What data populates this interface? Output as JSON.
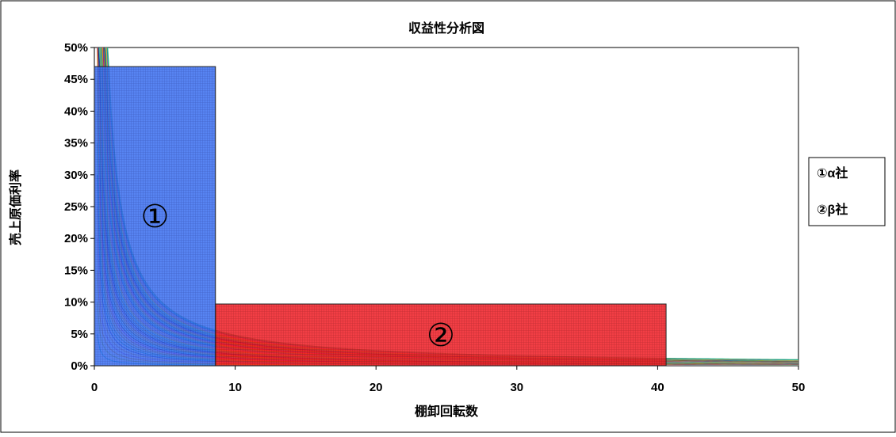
{
  "chart_data": {
    "type": "line",
    "title": "収益性分析図",
    "xlabel": "棚卸回転数",
    "ylabel": "売上原価利率",
    "xlim": [
      0,
      50
    ],
    "ylim": [
      0,
      0.5
    ],
    "x_ticks": [
      {
        "value": 0,
        "label": "0"
      },
      {
        "value": 10,
        "label": "10"
      },
      {
        "value": 20,
        "label": "20"
      },
      {
        "value": 30,
        "label": "30"
      },
      {
        "value": 40,
        "label": "40"
      },
      {
        "value": 50,
        "label": "50"
      }
    ],
    "y_ticks": [
      {
        "value": 0.0,
        "label": "0%"
      },
      {
        "value": 0.05,
        "label": "5%"
      },
      {
        "value": 0.1,
        "label": "10%"
      },
      {
        "value": 0.15,
        "label": "15%"
      },
      {
        "value": 0.2,
        "label": "20%"
      },
      {
        "value": 0.25,
        "label": "25%"
      },
      {
        "value": 0.3,
        "label": "30%"
      },
      {
        "value": 0.35,
        "label": "35%"
      },
      {
        "value": 0.4,
        "label": "40%"
      },
      {
        "value": 0.45,
        "label": "45%"
      },
      {
        "value": 0.5,
        "label": "50%"
      }
    ],
    "grid": false,
    "curve_family": {
      "description_free": true,
      "products": [
        0.5,
        1.0,
        1.5,
        2.0,
        2.5,
        3.0,
        3.5,
        4.0,
        4.5,
        5.0,
        5.5,
        6.0,
        6.5,
        7.0,
        7.5,
        8.0,
        8.5,
        9.0,
        9.5,
        10.0,
        10.5,
        11.0,
        11.5,
        12.0,
        12.5,
        13.0,
        13.5,
        14.0,
        14.5,
        15.0,
        15.5,
        16.0,
        16.5,
        17.0,
        17.5,
        18.0,
        18.5,
        19.0,
        19.5,
        20.0,
        20.5,
        21.0,
        21.5,
        22.0,
        22.5,
        23.0,
        23.5,
        24.0
      ],
      "colors": [
        "#00c8d8",
        "#b8d800",
        "#ff8c00",
        "#c060e0",
        "#f0a060",
        "#2040c0",
        "#00b8b8",
        "#30b070",
        "#d0b000",
        "#ff6020",
        "#e020c0",
        "#1a237e",
        "#20c0e0",
        "#2e7d32",
        "#e0b000",
        "#e06000",
        "#8030c0",
        "#101060",
        "#20a0c0",
        "#70a020"
      ]
    },
    "series": [
      {
        "name": "①",
        "x_range": [
          0,
          8.6
        ],
        "y_range": [
          0,
          0.47
        ],
        "color": "#2a5fe0"
      },
      {
        "name": "②",
        "x_range": [
          8.6,
          40.6
        ],
        "y_range": [
          0,
          0.097
        ],
        "color": "#e8141e"
      }
    ],
    "legend": {
      "placement": "right",
      "entries": [
        "①α社",
        "②β社"
      ]
    }
  }
}
